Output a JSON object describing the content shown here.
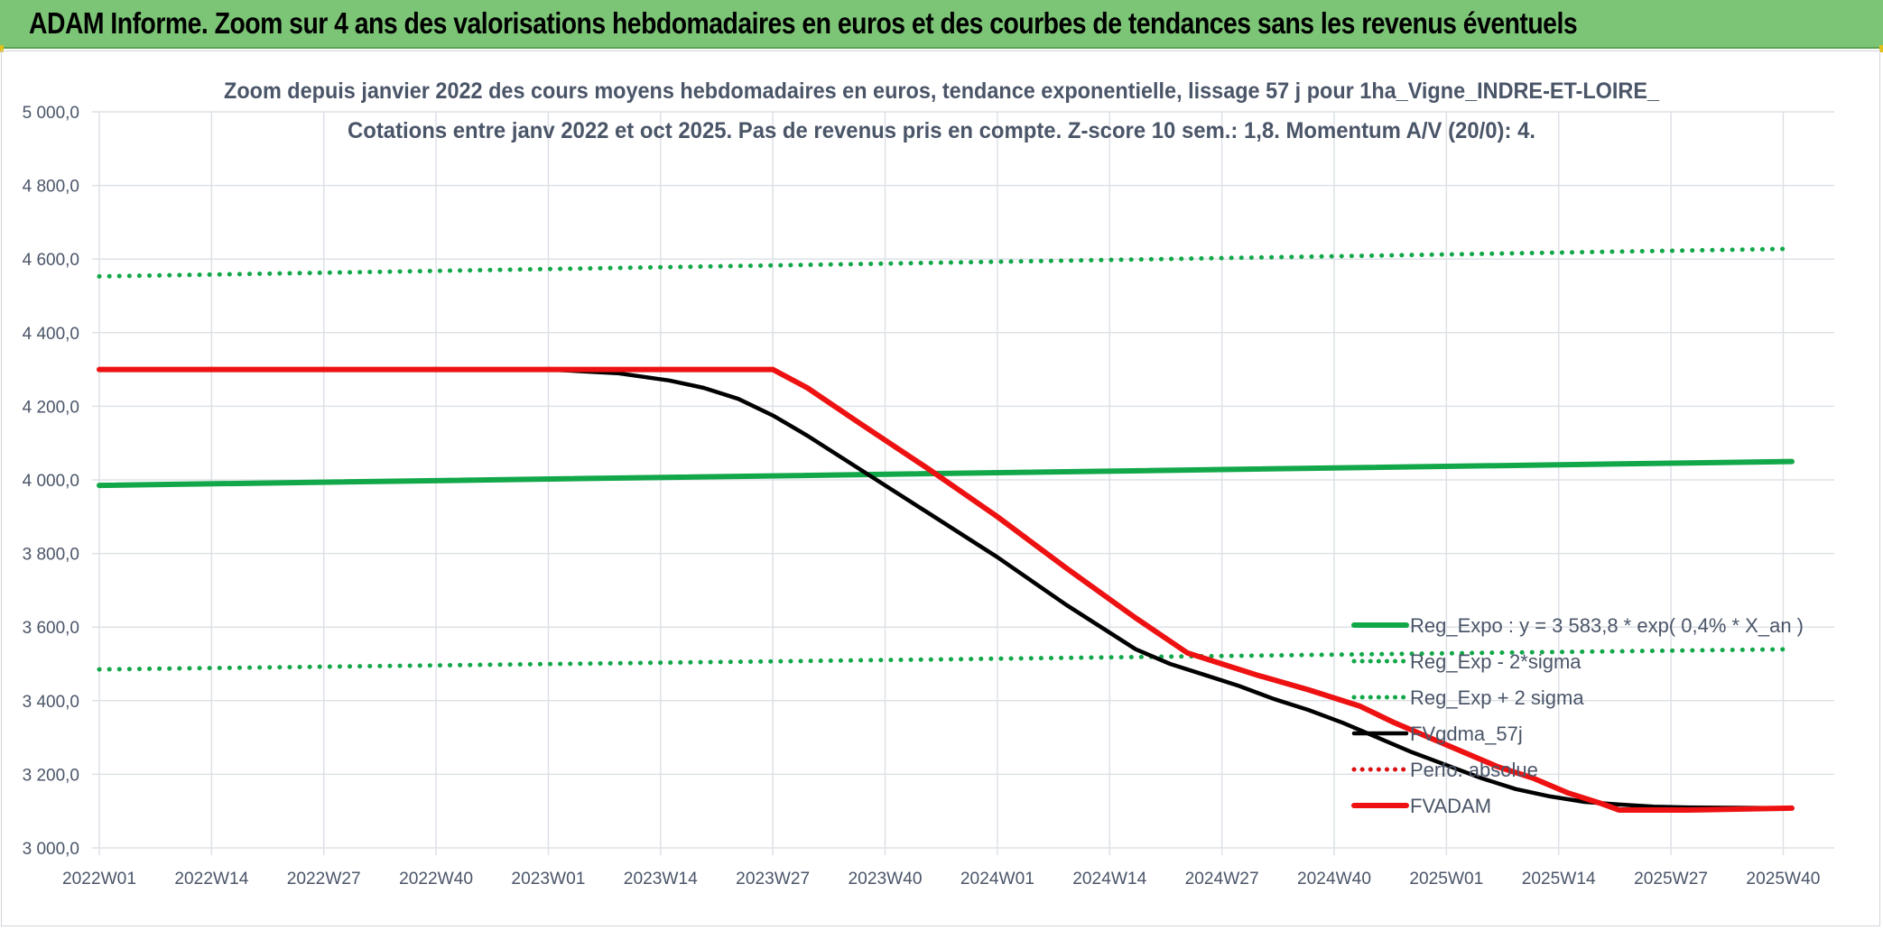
{
  "banner": {
    "title": "ADAM Informe. Zoom sur 4 ans des valorisations hebdomadaires en euros et des courbes de tendances sans les revenus éventuels"
  },
  "colors": {
    "banner_bg": "#7cc576",
    "trend_green": "#12a84a",
    "fvgdma_black": "#000000",
    "fvadam_red": "#ee1111",
    "perfo_red": "#dd1111",
    "grid": "#dde1e6",
    "text": "#4a5568"
  },
  "chart_data": {
    "type": "line",
    "title": "Zoom depuis janvier 2022 des cours moyens hebdomadaires en euros, tendance exponentielle, lissage 57 j pour 1ha_Vigne_INDRE-ET-LOIRE_",
    "subtitle": "Cotations entre janv 2022 et oct 2025. Pas de revenus pris en compte. Z-score 10 sem.: 1,8. Momentum A/V (20/0): 4.",
    "xlabel": "",
    "ylabel": "",
    "ylim": [
      3000,
      5000
    ],
    "y_ticks": [
      "5 000,0",
      "4 800,0",
      "4 600,0",
      "4 400,0",
      "4 200,0",
      "4 000,0",
      "3 800,0",
      "3 600,0",
      "3 400,0",
      "3 200,0",
      "3 000,0"
    ],
    "y_tick_values": [
      5000,
      4800,
      4600,
      4400,
      4200,
      4000,
      3800,
      3600,
      3400,
      3200,
      3000
    ],
    "x_ticks": [
      "2022W01",
      "2022W14",
      "2022W27",
      "2022W40",
      "2023W01",
      "2023W14",
      "2023W27",
      "2023W40",
      "2024W01",
      "2024W14",
      "2024W27",
      "2024W40",
      "2025W01",
      "2025W14",
      "2025W27",
      "2025W40"
    ],
    "x_unit": "weeks since 2022W01",
    "x_range": [
      0,
      196
    ],
    "grid": true,
    "legend_position": "bottom-right",
    "series": [
      {
        "name": "Reg_Expo : y = 3 583,8 * exp( 0,4% *  X_an )",
        "style": "solid-thick",
        "color": "#12a84a",
        "points": [
          [
            0,
            3985
          ],
          [
            196,
            4050
          ]
        ]
      },
      {
        "name": "Reg_Exp - 2*sigma",
        "style": "dotted",
        "color": "#12a84a",
        "points": [
          [
            0,
            3485
          ],
          [
            196,
            3540
          ]
        ]
      },
      {
        "name": "Reg_Exp + 2 sigma",
        "style": "dotted",
        "color": "#12a84a",
        "points": [
          [
            0,
            4553
          ],
          [
            196,
            4628
          ]
        ]
      },
      {
        "name": "FVgdma_57j",
        "style": "solid",
        "color": "#000000",
        "points": [
          [
            0,
            4300
          ],
          [
            52,
            4300
          ],
          [
            60,
            4290
          ],
          [
            66,
            4270
          ],
          [
            70,
            4250
          ],
          [
            74,
            4220
          ],
          [
            78,
            4175
          ],
          [
            82,
            4120
          ],
          [
            86,
            4060
          ],
          [
            90,
            4000
          ],
          [
            96,
            3910
          ],
          [
            104,
            3790
          ],
          [
            112,
            3660
          ],
          [
            116,
            3600
          ],
          [
            120,
            3540
          ],
          [
            124,
            3500
          ],
          [
            128,
            3470
          ],
          [
            132,
            3440
          ],
          [
            136,
            3405
          ],
          [
            140,
            3375
          ],
          [
            144,
            3340
          ],
          [
            148,
            3300
          ],
          [
            152,
            3260
          ],
          [
            156,
            3225
          ],
          [
            160,
            3190
          ],
          [
            164,
            3160
          ],
          [
            168,
            3140
          ],
          [
            172,
            3125
          ],
          [
            176,
            3118
          ],
          [
            180,
            3112
          ],
          [
            184,
            3110
          ],
          [
            196,
            3108
          ]
        ]
      },
      {
        "name": "Perfo. absolue",
        "style": "dotted",
        "color": "#dd1111",
        "points": []
      },
      {
        "name": "FVADAM",
        "style": "solid-thick",
        "color": "#ee1111",
        "points": [
          [
            0,
            4300
          ],
          [
            78,
            4300
          ],
          [
            82,
            4250
          ],
          [
            88,
            4155
          ],
          [
            96,
            4030
          ],
          [
            104,
            3900
          ],
          [
            112,
            3760
          ],
          [
            120,
            3625
          ],
          [
            126,
            3530
          ],
          [
            130,
            3500
          ],
          [
            134,
            3470
          ],
          [
            140,
            3430
          ],
          [
            146,
            3385
          ],
          [
            150,
            3340
          ],
          [
            156,
            3280
          ],
          [
            162,
            3220
          ],
          [
            166,
            3190
          ],
          [
            170,
            3150
          ],
          [
            174,
            3120
          ],
          [
            176,
            3103
          ],
          [
            180,
            3103
          ],
          [
            184,
            3103
          ],
          [
            196,
            3108
          ]
        ]
      }
    ]
  }
}
